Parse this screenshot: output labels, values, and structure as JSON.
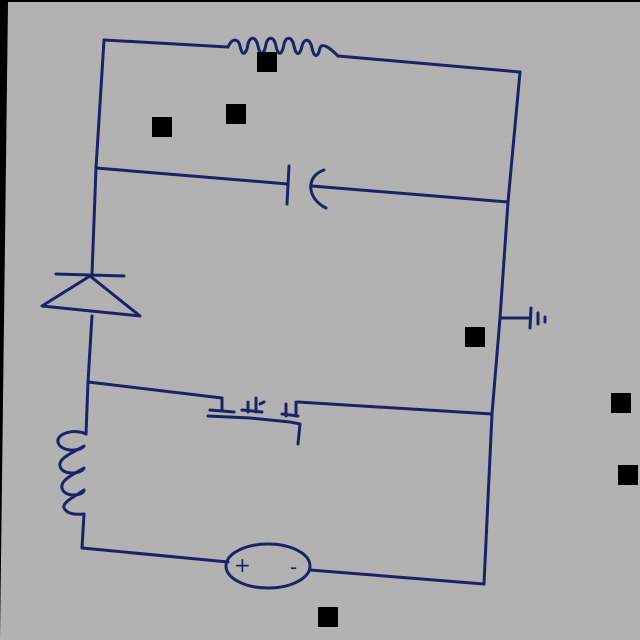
{
  "colors": {
    "paper": "#b2b2b2",
    "ink": "#1a2366",
    "background": "#000000",
    "redaction": "#000000"
  },
  "components": [
    {
      "id": "resistor",
      "type": "resistor"
    },
    {
      "id": "capacitor",
      "type": "polarized-capacitor"
    },
    {
      "id": "diode",
      "type": "diode"
    },
    {
      "id": "ground",
      "type": "ground"
    },
    {
      "id": "mosfet",
      "type": "mosfet"
    },
    {
      "id": "inductor",
      "type": "inductor"
    },
    {
      "id": "source",
      "type": "voltage-source",
      "plus_label": "+",
      "minus_label": "-"
    }
  ]
}
